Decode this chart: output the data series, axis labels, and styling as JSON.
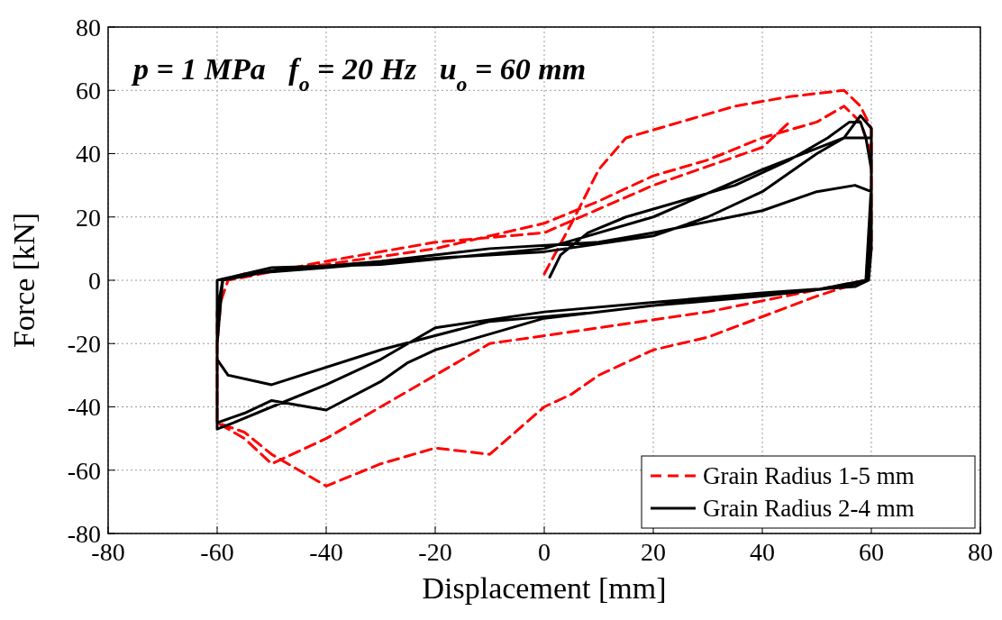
{
  "chart_data": {
    "type": "line",
    "title": "p = 1 MPa   f$_{o}$ = 20 Hz   u$_{o}$ = 60 mm",
    "xlabel": "Displacement [mm]",
    "ylabel": "Force [kN]",
    "xlim": [
      -80,
      80
    ],
    "ylim": [
      -80,
      80
    ],
    "xticks": [
      -80,
      -60,
      -40,
      -20,
      0,
      20,
      40,
      60,
      80
    ],
    "yticks": [
      -80,
      -60,
      -40,
      -20,
      0,
      20,
      40,
      60,
      80
    ],
    "grid": true,
    "legend": "bottom right",
    "series": [
      {
        "name": "Grain Radius 1-5 mm",
        "color": "#ff0000",
        "line_style": "dashed",
        "x": [
          0,
          5,
          10,
          15,
          25,
          35,
          45,
          55,
          58,
          60,
          60,
          59,
          50,
          30,
          20,
          10,
          5,
          0,
          -10,
          -20,
          -30,
          -40,
          -45,
          -50,
          -55,
          -60,
          -60,
          -59,
          -55,
          -40,
          -20,
          0,
          10,
          20,
          30,
          40,
          50,
          55,
          58,
          60,
          60,
          59,
          50,
          30,
          10,
          -10,
          -20,
          -30,
          -40,
          -50,
          -55,
          -60,
          -60,
          -58,
          -40,
          -20,
          0,
          20,
          40,
          45
        ],
        "values": [
          2,
          18,
          35,
          45,
          50,
          55,
          58,
          60,
          55,
          48,
          20,
          0,
          -5,
          -18,
          -22,
          -30,
          -36,
          -40,
          -55,
          -53,
          -58,
          -65,
          -60,
          -55,
          -48,
          -45,
          -20,
          0,
          2,
          5,
          10,
          18,
          25,
          33,
          38,
          45,
          50,
          55,
          50,
          40,
          10,
          0,
          -3,
          -10,
          -15,
          -20,
          -30,
          -40,
          -50,
          -58,
          -50,
          -45,
          -10,
          0,
          6,
          12,
          15,
          30,
          42,
          50
        ]
      },
      {
        "name": "Grain Radius 2-4 mm",
        "color": "#000000",
        "line_style": "solid",
        "x": [
          1,
          3,
          8,
          15,
          25,
          35,
          45,
          52,
          56,
          58,
          59,
          60,
          60,
          59.5,
          57,
          40,
          20,
          0,
          -20,
          -30,
          -40,
          -50,
          -57,
          -60,
          -60,
          -60,
          -59,
          -55,
          -40,
          -20,
          0,
          20,
          30,
          40,
          50,
          55,
          58,
          60,
          60,
          59,
          55,
          40,
          20,
          0,
          -20,
          -25,
          -30,
          -40,
          -50,
          -55,
          -60,
          -60,
          -59,
          -50,
          -30,
          -10,
          10,
          20,
          40,
          50,
          57,
          60,
          60,
          59,
          50,
          30,
          10,
          -10,
          -30,
          -50,
          -58,
          -60,
          -60,
          -50,
          -30,
          0,
          20,
          40,
          55,
          60
        ],
        "values": [
          1,
          8,
          15,
          20,
          25,
          30,
          38,
          45,
          50,
          50,
          45,
          35,
          10,
          0,
          -2,
          -4,
          -7,
          -10,
          -15,
          -25,
          -33,
          -40,
          -45,
          -47,
          -30,
          -10,
          0,
          2,
          4,
          7,
          9,
          14,
          20,
          28,
          40,
          45,
          52,
          48,
          30,
          0,
          -2,
          -5,
          -8,
          -12,
          -22,
          -26,
          -32,
          -41,
          -38,
          -42,
          -45,
          -20,
          0,
          3,
          6,
          10,
          12,
          15,
          22,
          28,
          30,
          28,
          20,
          0,
          -3,
          -6,
          -10,
          -13,
          -22,
          -33,
          -30,
          -25,
          0,
          4,
          5,
          10,
          20,
          35,
          45,
          45
        ]
      }
    ]
  }
}
